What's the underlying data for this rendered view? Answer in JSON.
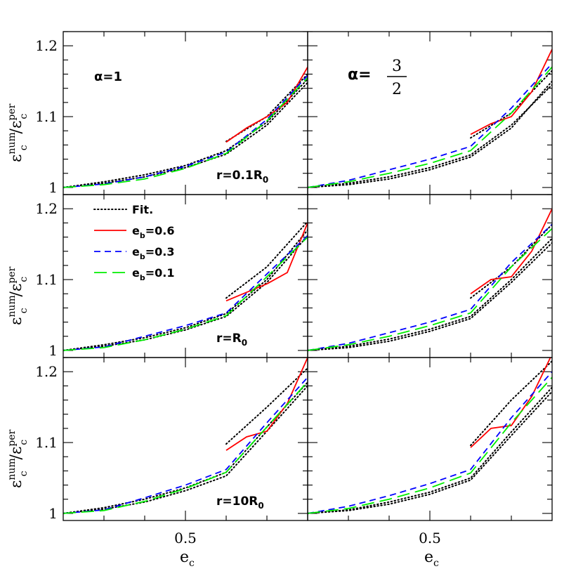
{
  "chart_data": {
    "type": "line",
    "layout": "3 rows x 2 columns, shared axes",
    "xlabel": {
      "main": "e",
      "sub": "c"
    },
    "ylabel": {
      "main": "ε",
      "sub_num": "num",
      "sub_c": "c",
      "den": "ε",
      "den_sup": "per",
      "den_sub": "c"
    },
    "xlim": [
      0.2,
      0.8
    ],
    "x_ticks": [
      0.5
    ],
    "rows": [
      {
        "label": "r=0.1R",
        "label_sub": "0",
        "ylim": [
          0.99,
          1.22
        ],
        "y_ticks": [
          1.0,
          1.1,
          1.2
        ],
        "y_tick_labels": [
          "1",
          "1.1",
          "1.2"
        ]
      },
      {
        "label": "r=R",
        "label_sub": "0",
        "ylim": [
          0.99,
          1.22
        ],
        "y_ticks": [
          1.0,
          1.1,
          1.2
        ],
        "y_tick_labels": [
          "1",
          "1.1",
          "1.2"
        ]
      },
      {
        "label": "r=10R",
        "label_sub": "0",
        "ylim": [
          0.99,
          1.22
        ],
        "y_ticks": [
          1.0,
          1.1,
          1.2
        ],
        "y_tick_labels": [
          "1",
          "1.1",
          "1.2"
        ]
      }
    ],
    "columns": [
      {
        "label": "α=1"
      },
      {
        "label": "α=",
        "frac_num": "3",
        "frac_den": "2"
      }
    ],
    "legend": {
      "panel": "row2-col1",
      "placement": "top-left",
      "entries": [
        {
          "key": "fit",
          "text": "Fit."
        },
        {
          "key": "eb06",
          "text": "e",
          "sub": "b",
          "rest": "=0.6"
        },
        {
          "key": "eb03",
          "text": "e",
          "sub": "b",
          "rest": "=0.3"
        },
        {
          "key": "eb01",
          "text": "e",
          "sub": "b",
          "rest": "=0.1"
        }
      ]
    },
    "styles": {
      "fit": {
        "color": "#000000",
        "dash": "1.5 3.5"
      },
      "eb06": {
        "color": "#ff0000",
        "dash": ""
      },
      "eb03": {
        "color": "#0000ff",
        "dash": "9 6"
      },
      "eb01": {
        "color": "#00ee00",
        "dash": "18 8"
      }
    },
    "panels": [
      {
        "row": 0,
        "col": 0,
        "series": [
          {
            "key": "fit",
            "x": [
              0.2,
              0.3,
              0.4,
              0.5,
              0.6,
              0.7,
              0.8
            ],
            "y": [
              1.0,
              1.008,
              1.018,
              1.031,
              1.052,
              1.092,
              1.153
            ]
          },
          {
            "key": "fit",
            "x": [
              0.2,
              0.3,
              0.4,
              0.5,
              0.6,
              0.7,
              0.8
            ],
            "y": [
              1.0,
              1.006,
              1.015,
              1.028,
              1.047,
              1.088,
              1.148
            ]
          },
          {
            "key": "fit",
            "x": [
              0.6,
              0.7,
              0.8
            ],
            "y": [
              1.065,
              1.1,
              1.16
            ]
          },
          {
            "key": "eb06",
            "x": [
              0.6,
              0.65,
              0.7,
              0.75,
              0.8
            ],
            "y": [
              1.064,
              1.084,
              1.1,
              1.12,
              1.17
            ]
          },
          {
            "key": "eb03",
            "x": [
              0.2,
              0.3,
              0.4,
              0.5,
              0.6,
              0.7,
              0.8
            ],
            "y": [
              1.0,
              1.005,
              1.015,
              1.03,
              1.05,
              1.096,
              1.158
            ]
          },
          {
            "key": "eb01",
            "x": [
              0.2,
              0.3,
              0.4,
              0.5,
              0.6,
              0.7,
              0.8
            ],
            "y": [
              1.0,
              1.004,
              1.012,
              1.027,
              1.048,
              1.094,
              1.155
            ]
          }
        ]
      },
      {
        "row": 0,
        "col": 1,
        "series": [
          {
            "key": "fit",
            "x": [
              0.2,
              0.3,
              0.4,
              0.5,
              0.6,
              0.7,
              0.8
            ],
            "y": [
              1.0,
              1.006,
              1.015,
              1.028,
              1.046,
              1.088,
              1.145
            ]
          },
          {
            "key": "fit",
            "x": [
              0.2,
              0.3,
              0.4,
              0.5,
              0.6,
              0.7,
              0.8
            ],
            "y": [
              1.0,
              1.004,
              1.012,
              1.025,
              1.043,
              1.084,
              1.15
            ]
          },
          {
            "key": "fit",
            "x": [
              0.6,
              0.7,
              0.8
            ],
            "y": [
              1.07,
              1.105,
              1.165
            ]
          },
          {
            "key": "eb06",
            "x": [
              0.6,
              0.65,
              0.7,
              0.75,
              0.8
            ],
            "y": [
              1.075,
              1.09,
              1.1,
              1.135,
              1.195
            ]
          },
          {
            "key": "eb03",
            "x": [
              0.2,
              0.3,
              0.4,
              0.5,
              0.6,
              0.7,
              0.8
            ],
            "y": [
              1.0,
              1.01,
              1.025,
              1.04,
              1.058,
              1.112,
              1.175
            ]
          },
          {
            "key": "eb01",
            "x": [
              0.2,
              0.3,
              0.4,
              0.5,
              0.6,
              0.7,
              0.8
            ],
            "y": [
              1.0,
              1.008,
              1.02,
              1.034,
              1.052,
              1.105,
              1.17
            ]
          }
        ]
      },
      {
        "row": 1,
        "col": 0,
        "series": [
          {
            "key": "fit",
            "x": [
              0.2,
              0.3,
              0.4,
              0.5,
              0.6,
              0.7,
              0.8
            ],
            "y": [
              1.0,
              1.008,
              1.018,
              1.032,
              1.052,
              1.1,
              1.17
            ]
          },
          {
            "key": "fit",
            "x": [
              0.2,
              0.3,
              0.4,
              0.5,
              0.6,
              0.7,
              0.8
            ],
            "y": [
              1.0,
              1.006,
              1.015,
              1.029,
              1.048,
              1.096,
              1.162
            ]
          },
          {
            "key": "fit",
            "x": [
              0.6,
              0.7,
              0.8
            ],
            "y": [
              1.074,
              1.118,
              1.182
            ]
          },
          {
            "key": "eb06",
            "x": [
              0.6,
              0.65,
              0.7,
              0.75,
              0.8
            ],
            "y": [
              1.07,
              1.082,
              1.094,
              1.11,
              1.18
            ]
          },
          {
            "key": "eb03",
            "x": [
              0.2,
              0.3,
              0.4,
              0.5,
              0.6,
              0.7,
              0.8
            ],
            "y": [
              1.0,
              1.005,
              1.02,
              1.035,
              1.053,
              1.108,
              1.162
            ]
          },
          {
            "key": "eb01",
            "x": [
              0.2,
              0.3,
              0.4,
              0.5,
              0.6,
              0.7,
              0.8
            ],
            "y": [
              1.0,
              1.004,
              1.015,
              1.03,
              1.049,
              1.104,
              1.16
            ]
          }
        ]
      },
      {
        "row": 1,
        "col": 1,
        "series": [
          {
            "key": "fit",
            "x": [
              0.2,
              0.3,
              0.4,
              0.5,
              0.6,
              0.7,
              0.8
            ],
            "y": [
              1.0,
              1.006,
              1.016,
              1.03,
              1.048,
              1.1,
              1.158
            ]
          },
          {
            "key": "fit",
            "x": [
              0.2,
              0.3,
              0.4,
              0.5,
              0.6,
              0.7,
              0.8
            ],
            "y": [
              1.0,
              1.004,
              1.013,
              1.027,
              1.045,
              1.096,
              1.152
            ]
          },
          {
            "key": "fit",
            "x": [
              0.6,
              0.7,
              0.8
            ],
            "y": [
              1.074,
              1.118,
              1.178
            ]
          },
          {
            "key": "eb06",
            "x": [
              0.6,
              0.65,
              0.7,
              0.75,
              0.8
            ],
            "y": [
              1.08,
              1.1,
              1.104,
              1.14,
              1.2
            ]
          },
          {
            "key": "eb03",
            "x": [
              0.2,
              0.3,
              0.4,
              0.5,
              0.6,
              0.7,
              0.8
            ],
            "y": [
              1.0,
              1.01,
              1.025,
              1.04,
              1.058,
              1.124,
              1.178
            ]
          },
          {
            "key": "eb01",
            "x": [
              0.2,
              0.3,
              0.4,
              0.5,
              0.6,
              0.7,
              0.8
            ],
            "y": [
              1.0,
              1.008,
              1.02,
              1.035,
              1.053,
              1.118,
              1.172
            ]
          }
        ]
      },
      {
        "row": 2,
        "col": 0,
        "series": [
          {
            "key": "fit",
            "x": [
              0.2,
              0.3,
              0.4,
              0.5,
              0.6,
              0.7,
              0.8
            ],
            "y": [
              1.0,
              1.008,
              1.02,
              1.036,
              1.058,
              1.122,
              1.185
            ]
          },
          {
            "key": "fit",
            "x": [
              0.2,
              0.3,
              0.4,
              0.5,
              0.6,
              0.7,
              0.8
            ],
            "y": [
              1.0,
              1.006,
              1.016,
              1.032,
              1.053,
              1.116,
              1.18
            ]
          },
          {
            "key": "fit",
            "x": [
              0.6,
              0.7,
              0.8
            ],
            "y": [
              1.098,
              1.15,
              1.205
            ]
          },
          {
            "key": "eb06",
            "x": [
              0.6,
              0.65,
              0.7,
              0.75,
              0.8
            ],
            "y": [
              1.089,
              1.108,
              1.116,
              1.155,
              1.22
            ]
          },
          {
            "key": "eb03",
            "x": [
              0.2,
              0.3,
              0.4,
              0.5,
              0.6,
              0.7,
              0.8
            ],
            "y": [
              1.0,
              1.005,
              1.022,
              1.04,
              1.062,
              1.128,
              1.192
            ]
          },
          {
            "key": "eb01",
            "x": [
              0.2,
              0.3,
              0.4,
              0.5,
              0.6,
              0.7,
              0.8
            ],
            "y": [
              1.0,
              1.004,
              1.017,
              1.035,
              1.058,
              1.122,
              1.186
            ]
          }
        ]
      },
      {
        "row": 2,
        "col": 1,
        "series": [
          {
            "key": "fit",
            "x": [
              0.2,
              0.3,
              0.4,
              0.5,
              0.6,
              0.7,
              0.8
            ],
            "y": [
              1.0,
              1.005,
              1.016,
              1.03,
              1.05,
              1.115,
              1.178
            ]
          },
          {
            "key": "fit",
            "x": [
              0.2,
              0.3,
              0.4,
              0.5,
              0.6,
              0.7,
              0.8
            ],
            "y": [
              1.0,
              1.004,
              1.013,
              1.027,
              1.047,
              1.11,
              1.172
            ]
          },
          {
            "key": "fit",
            "x": [
              0.6,
              0.7,
              0.8
            ],
            "y": [
              1.096,
              1.16,
              1.215
            ]
          },
          {
            "key": "eb06",
            "x": [
              0.6,
              0.65,
              0.7,
              0.75,
              0.8
            ],
            "y": [
              1.093,
              1.12,
              1.124,
              1.165,
              1.225
            ]
          },
          {
            "key": "eb03",
            "x": [
              0.2,
              0.3,
              0.4,
              0.5,
              0.6,
              0.7,
              0.8
            ],
            "y": [
              1.0,
              1.01,
              1.025,
              1.042,
              1.062,
              1.135,
              1.2
            ]
          },
          {
            "key": "eb01",
            "x": [
              0.2,
              0.3,
              0.4,
              0.5,
              0.6,
              0.7,
              0.8
            ],
            "y": [
              1.0,
              1.007,
              1.02,
              1.036,
              1.057,
              1.128,
              1.192
            ]
          }
        ]
      }
    ]
  }
}
